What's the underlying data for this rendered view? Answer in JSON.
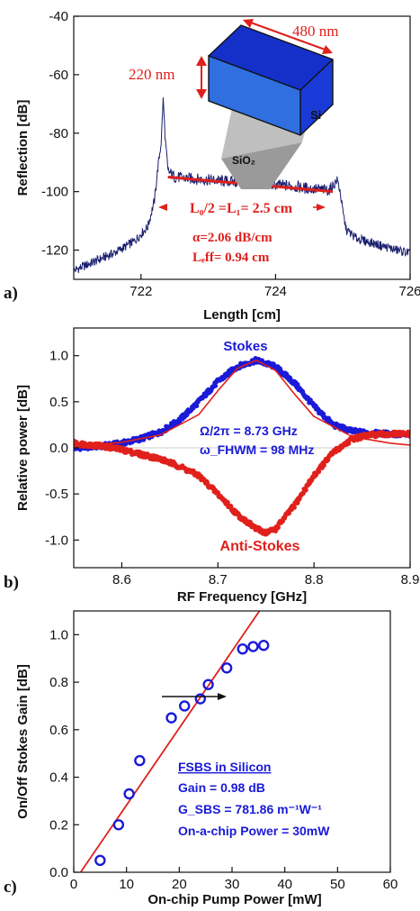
{
  "chart_data": [
    {
      "id": "a",
      "type": "line",
      "panel_label": "a)",
      "xlabel": "Length [cm]",
      "ylabel": "Reflection [dB]",
      "xlim": [
        721,
        726
      ],
      "ylim": [
        -130,
        -40
      ],
      "xticks": [
        722,
        724,
        726
      ],
      "yticks": [
        -40,
        -60,
        -80,
        -100,
        -120
      ],
      "series": [
        {
          "color": "#1a1f6e",
          "x": [
            721.0,
            721.3,
            721.6,
            721.9,
            722.1,
            722.2,
            722.25,
            722.3,
            722.33,
            722.36,
            722.4,
            722.5,
            722.7,
            723.0,
            723.3,
            723.6,
            723.9,
            724.2,
            724.5,
            724.8,
            724.92,
            724.96,
            725.0,
            725.05,
            725.2,
            725.5,
            725.8,
            726.0
          ],
          "y": [
            -127,
            -124,
            -121,
            -117,
            -112,
            -103,
            -92,
            -83,
            -68,
            -82,
            -93,
            -95,
            -95.5,
            -96,
            -96.5,
            -97,
            -97.5,
            -98,
            -99,
            -99.5,
            -96,
            -100,
            -107,
            -113,
            -116,
            -118,
            -120,
            -121
          ]
        }
      ],
      "fit": {
        "color": "#e0201c",
        "x": [
          722.4,
          724.85
        ],
        "y": [
          -95,
          -100
        ]
      },
      "annotations": {
        "length_text": "L₀/2 =L₁= 2.5 cm",
        "alpha_text": "α=2.06 dB/cm",
        "leff_text": "Lₑff= 0.94 cm",
        "height_label": "220 nm",
        "width_label": "480 nm",
        "si_label": "Si",
        "sio2_label": "SiO₂"
      },
      "colors": {
        "cube_front": "#2f6fe0",
        "cube_top": "#1430c8",
        "cube_side": "#1a3ad8",
        "annotation": "#e0201c"
      }
    },
    {
      "id": "b",
      "type": "scatter",
      "panel_label": "b)",
      "xlabel": "RF Frequency [GHz]",
      "ylabel": "Relative power [dB]",
      "xlim": [
        8.55,
        8.9
      ],
      "ylim": [
        -1.3,
        1.3
      ],
      "xticks": [
        8.6,
        8.7,
        8.8,
        8.9
      ],
      "yticks": [
        1.0,
        0.5,
        0.0,
        -0.5,
        -1.0
      ],
      "series": [
        {
          "name": "Stokes",
          "color": "#1a1ad8",
          "x": [
            8.55,
            8.58,
            8.6,
            8.62,
            8.64,
            8.66,
            8.68,
            8.7,
            8.72,
            8.74,
            8.76,
            8.78,
            8.8,
            8.82,
            8.84,
            8.86,
            8.88,
            8.9
          ],
          "y": [
            0.0,
            0.02,
            0.05,
            0.1,
            0.17,
            0.3,
            0.5,
            0.72,
            0.88,
            0.95,
            0.88,
            0.7,
            0.45,
            0.25,
            0.18,
            0.16,
            0.15,
            0.14
          ]
        },
        {
          "name": "Anti-Stokes",
          "color": "#e0201c",
          "x": [
            8.55,
            8.58,
            8.6,
            8.62,
            8.64,
            8.66,
            8.68,
            8.7,
            8.72,
            8.74,
            8.75,
            8.76,
            8.78,
            8.8,
            8.82,
            8.84,
            8.86,
            8.88,
            8.9
          ],
          "y": [
            0.05,
            0.02,
            -0.02,
            -0.07,
            -0.12,
            -0.2,
            -0.3,
            -0.5,
            -0.72,
            -0.88,
            -0.92,
            -0.88,
            -0.62,
            -0.3,
            -0.05,
            0.1,
            0.14,
            0.15,
            0.15
          ]
        }
      ],
      "fit": {
        "color": "#e0201c",
        "x": [
          8.55,
          8.6,
          8.64,
          8.68,
          8.7,
          8.72,
          8.74,
          8.76,
          8.78,
          8.8,
          8.84,
          8.88,
          8.9
        ],
        "y": [
          0.02,
          0.06,
          0.14,
          0.36,
          0.62,
          0.86,
          0.95,
          0.84,
          0.58,
          0.34,
          0.12,
          0.05,
          0.03
        ]
      },
      "annotations": {
        "omega_text": "Ω/2π = 8.73 GHz",
        "fwhm_text": "ω_FHWM = 98 MHz"
      }
    },
    {
      "id": "c",
      "type": "scatter",
      "panel_label": "c)",
      "xlabel": "On-chip Pump Power [mW]",
      "ylabel": "On/Off Stokes Gain [dB]",
      "xlim": [
        0,
        60
      ],
      "ylim": [
        0.0,
        1.1
      ],
      "xticks": [
        0,
        10,
        20,
        30,
        40,
        50,
        60
      ],
      "yticks": [
        0.0,
        0.2,
        0.4,
        0.6,
        0.8,
        1.0
      ],
      "series": [
        {
          "color": "#1a1ad8",
          "x": [
            5,
            8.5,
            10.5,
            12.5,
            18.5,
            21,
            24,
            25.5,
            29,
            32,
            34,
            36
          ],
          "y": [
            0.05,
            0.2,
            0.33,
            0.47,
            0.65,
            0.7,
            0.73,
            0.79,
            0.86,
            0.94,
            0.95,
            0.955
          ]
        }
      ],
      "fit": {
        "color": "#e0201c",
        "x": [
          1.3,
          35.2
        ],
        "y": [
          0.0,
          1.1
        ]
      },
      "annotations": {
        "title": "FSBS  in Silicon",
        "gain": "Gain = 0.98 dB",
        "gsbs": "G_SBS = 781.86 m⁻¹W⁻¹",
        "power": "On-a-chip Power = 30mW"
      }
    }
  ]
}
